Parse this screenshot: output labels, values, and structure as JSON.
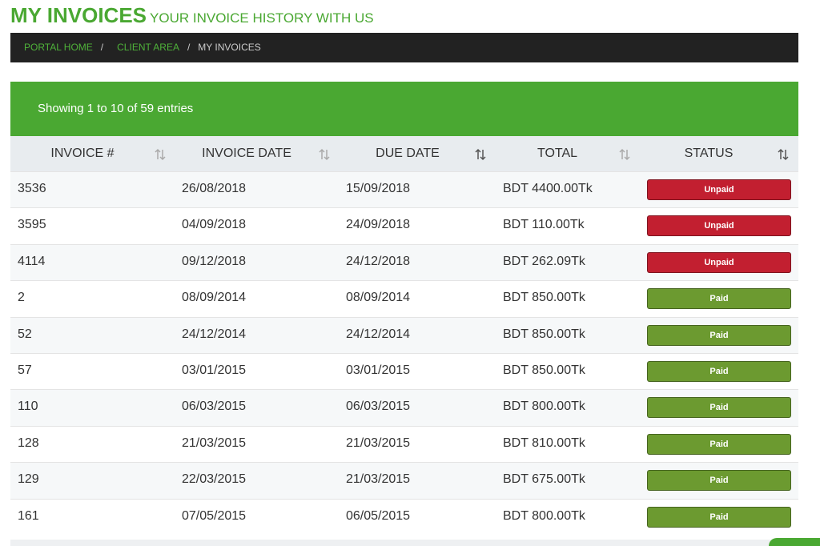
{
  "header": {
    "title": "MY INVOICES",
    "subtitle": "YOUR INVOICE HISTORY WITH US"
  },
  "breadcrumb": {
    "items": [
      "PORTAL HOME",
      "CLIENT AREA",
      "MY INVOICES"
    ],
    "separator": "/"
  },
  "table": {
    "info": "Showing 1 to 10 of 59 entries",
    "columns": [
      "INVOICE #",
      "INVOICE DATE",
      "DUE DATE",
      "TOTAL",
      "STATUS"
    ],
    "status_colors": {
      "Unpaid": "#c21f30",
      "Paid": "#6c9a30"
    },
    "rows": [
      [
        "3536",
        "26/08/2018",
        "15/09/2018",
        "BDT 4400.00Tk",
        "Unpaid"
      ],
      [
        "3595",
        "04/09/2018",
        "24/09/2018",
        "BDT 110.00Tk",
        "Unpaid"
      ],
      [
        "4114",
        "09/12/2018",
        "24/12/2018",
        "BDT 262.09Tk",
        "Unpaid"
      ],
      [
        "2",
        "08/09/2014",
        "08/09/2014",
        "BDT 850.00Tk",
        "Paid"
      ],
      [
        "52",
        "24/12/2014",
        "24/12/2014",
        "BDT 850.00Tk",
        "Paid"
      ],
      [
        "57",
        "03/01/2015",
        "03/01/2015",
        "BDT 850.00Tk",
        "Paid"
      ],
      [
        "110",
        "06/03/2015",
        "06/03/2015",
        "BDT 800.00Tk",
        "Paid"
      ],
      [
        "128",
        "21/03/2015",
        "21/03/2015",
        "BDT 810.00Tk",
        "Paid"
      ],
      [
        "129",
        "22/03/2015",
        "21/03/2015",
        "BDT 675.00Tk",
        "Paid"
      ],
      [
        "161",
        "07/05/2015",
        "06/05/2015",
        "BDT 800.00Tk",
        "Paid"
      ]
    ]
  }
}
